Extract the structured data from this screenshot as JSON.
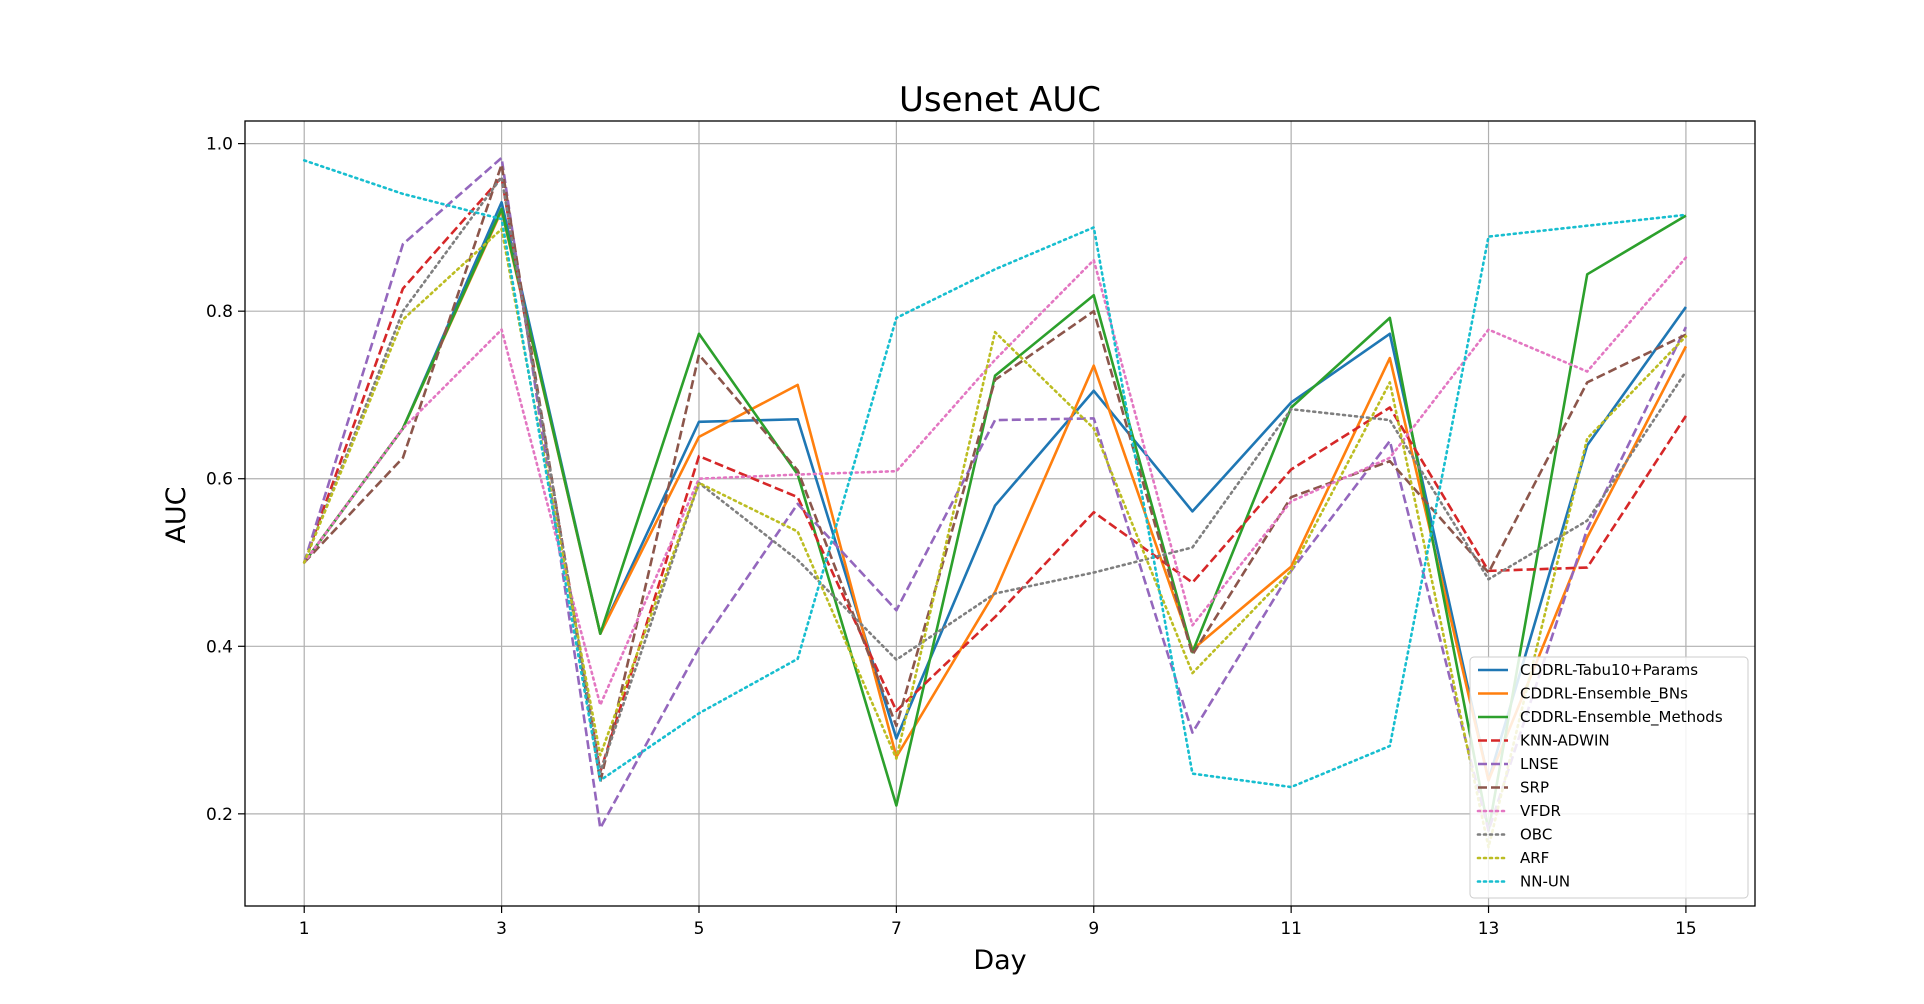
{
  "chart_data": {
    "type": "line",
    "title": "Usenet AUC",
    "xlabel": "Day",
    "ylabel": "AUC",
    "x": [
      1,
      2,
      3,
      4,
      5,
      6,
      7,
      8,
      9,
      10,
      11,
      12,
      13,
      14,
      15
    ],
    "xticks": [
      "1",
      "3",
      "5",
      "7",
      "9",
      "11",
      "13",
      "15"
    ],
    "yticks": [
      "0.2",
      "0.4",
      "0.6",
      "0.8",
      "1.0"
    ],
    "xlim": [
      0.4,
      15.7
    ],
    "ylim": [
      0.09,
      1.027
    ],
    "grid": true,
    "legend_position": "lower-right",
    "series": [
      {
        "name": "CDDRL-Tabu10+Params",
        "color": "#1f77b4",
        "dash": "solid",
        "values": [
          0.5,
          0.66,
          0.93,
          0.415,
          0.668,
          0.671,
          0.29,
          0.568,
          0.705,
          0.561,
          0.691,
          0.773,
          0.24,
          0.64,
          0.805
        ]
      },
      {
        "name": "CDDRL-Ensemble_BNs",
        "color": "#ff7f0e",
        "dash": "solid",
        "values": [
          0.5,
          0.66,
          0.92,
          0.415,
          0.65,
          0.712,
          0.268,
          0.465,
          0.735,
          0.396,
          0.495,
          0.744,
          0.24,
          0.53,
          0.758
        ]
      },
      {
        "name": "CDDRL-Ensemble_Methods",
        "color": "#2ca02c",
        "dash": "solid",
        "values": [
          0.5,
          0.66,
          0.922,
          0.415,
          0.773,
          0.605,
          0.21,
          0.723,
          0.819,
          0.393,
          0.685,
          0.792,
          0.18,
          0.844,
          0.914
        ]
      },
      {
        "name": "KNN-ADWIN",
        "color": "#d62728",
        "dash": "dashed",
        "values": [
          0.5,
          0.827,
          0.96,
          0.25,
          0.627,
          0.578,
          0.323,
          0.435,
          0.56,
          0.476,
          0.611,
          0.685,
          0.49,
          0.494,
          0.675
        ]
      },
      {
        "name": "LNSE",
        "color": "#9467bd",
        "dash": "dashed",
        "values": [
          0.5,
          0.88,
          0.983,
          0.183,
          0.398,
          0.57,
          0.443,
          0.67,
          0.672,
          0.297,
          0.49,
          0.645,
          0.18,
          0.54,
          0.781
        ]
      },
      {
        "name": "SRP",
        "color": "#8c564b",
        "dash": "dashed",
        "values": [
          0.5,
          0.625,
          0.975,
          0.238,
          0.748,
          0.61,
          0.305,
          0.718,
          0.8,
          0.39,
          0.578,
          0.621,
          0.488,
          0.715,
          0.772
        ]
      },
      {
        "name": "VFDR",
        "color": "#e377c2",
        "dash": "dotted",
        "values": [
          0.5,
          0.66,
          0.778,
          0.33,
          0.6,
          0.605,
          0.609,
          0.742,
          0.861,
          0.425,
          0.573,
          0.625,
          0.778,
          0.728,
          0.864
        ]
      },
      {
        "name": "OBC",
        "color": "#7f7f7f",
        "dash": "dotted",
        "values": [
          0.5,
          0.8,
          0.96,
          0.25,
          0.595,
          0.503,
          0.384,
          0.463,
          0.488,
          0.518,
          0.683,
          0.67,
          0.48,
          0.55,
          0.728
        ]
      },
      {
        "name": "ARF",
        "color": "#bcbd22",
        "dash": "dotted",
        "values": [
          0.5,
          0.79,
          0.898,
          0.27,
          0.595,
          0.537,
          0.266,
          0.775,
          0.66,
          0.368,
          0.49,
          0.715,
          0.16,
          0.648,
          0.77
        ]
      },
      {
        "name": "NN-UN",
        "color": "#17becf",
        "dash": "dotted",
        "values": [
          0.98,
          0.94,
          0.91,
          0.24,
          0.32,
          0.385,
          0.792,
          0.85,
          0.9,
          0.248,
          0.232,
          0.281,
          0.889,
          0.902,
          0.915
        ]
      }
    ]
  }
}
